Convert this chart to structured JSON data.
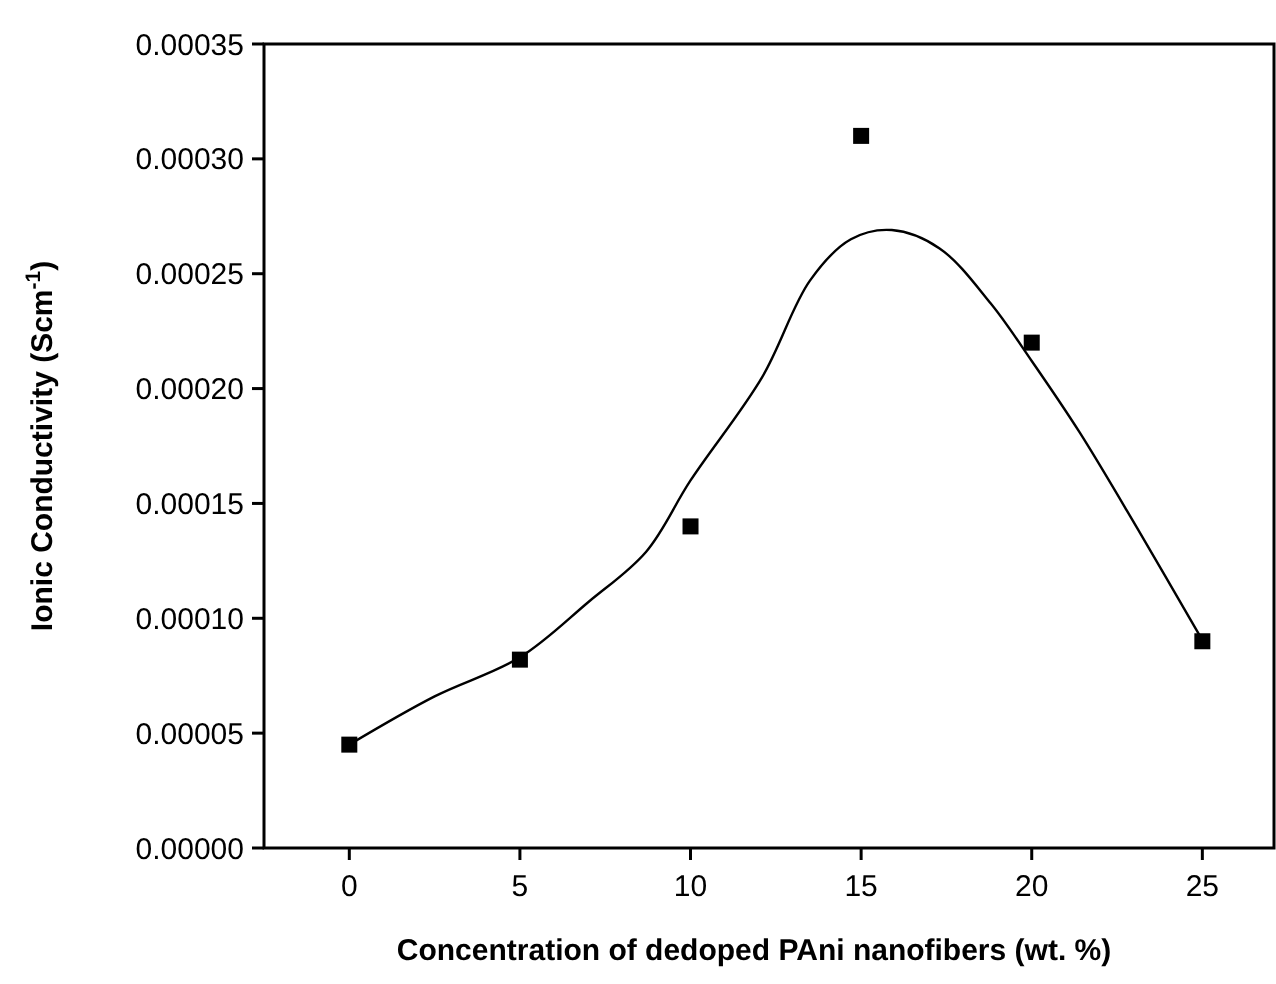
{
  "chart_data": {
    "type": "scatter",
    "xlabel": "Concentration of dedoped PAni nanofibers (wt. %)",
    "ylabel": "Ionic Conductivity (Scm$^{-1}$)",
    "xlim": [
      -2.5,
      27.1
    ],
    "xticks": [
      0,
      5,
      10,
      15,
      20,
      25
    ],
    "ylim": [
      0,
      0.00035
    ],
    "yticks": [
      {
        "value": 0,
        "label": "0.00000"
      },
      {
        "value": 5e-05,
        "label": "0.00005"
      },
      {
        "value": 0.0001,
        "label": "0.00010"
      },
      {
        "value": 0.00015,
        "label": "0.00015"
      },
      {
        "value": 0.0002,
        "label": "0.00020"
      },
      {
        "value": 0.00025,
        "label": "0.00025"
      },
      {
        "value": 0.0003,
        "label": "0.00030"
      },
      {
        "value": 0.00035,
        "label": "0.00035"
      }
    ],
    "grid": false,
    "series": [
      {
        "color": "#000000",
        "marker": "square",
        "x": [
          0,
          5,
          10,
          15,
          20,
          25
        ],
        "values": [
          4.5e-05,
          8.2e-05,
          0.00014,
          0.00031,
          0.00022,
          9e-05
        ]
      },
      {
        "type": "line",
        "color": "#000000",
        "marker": "none",
        "line_style": "solid",
        "x": [
          0,
          2.5,
          5,
          7,
          8.7,
          10,
          12.1,
          13.5,
          14.7,
          15.9,
          17.3,
          18.8,
          20,
          21.4,
          23.1,
          25
        ],
        "values": [
          4.5e-05,
          6.6e-05,
          8.3e-05,
          0.000107,
          0.000129,
          0.00016,
          0.000205,
          0.000247,
          0.000265,
          0.000269,
          0.000261,
          0.000237,
          0.000212,
          0.000181,
          0.000139,
          9.05e-05
        ]
      }
    ]
  }
}
